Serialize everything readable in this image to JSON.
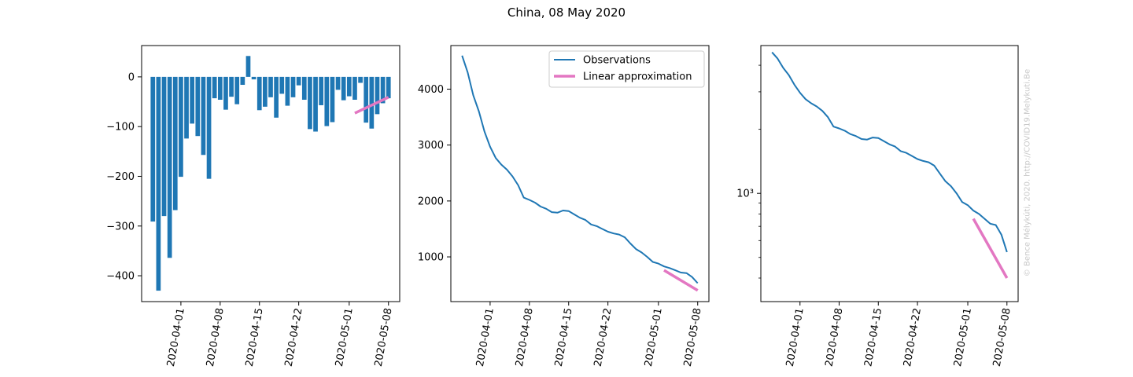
{
  "title": "China, 08 May 2020",
  "watermark": "© Bence Mélykúti, 2020. http://COVID19.Melykuti.Be",
  "colors": {
    "observations": "#1f77b4",
    "approximation": "#e377c2",
    "axis": "#000000"
  },
  "chart_data": [
    {
      "type": "bar",
      "x_tick_labels": [
        "2020-04-01",
        "2020-04-08",
        "2020-04-15",
        "2020-04-22",
        "2020-05-01",
        "2020-05-08"
      ],
      "x_tick_dates": [
        "2020-04-01",
        "2020-04-08",
        "2020-04-15",
        "2020-04-22",
        "2020-05-01",
        "2020-05-08"
      ],
      "y_ticks": [
        0,
        -100,
        -200,
        -300,
        -400
      ],
      "y_tick_labels": [
        "0",
        "−100",
        "−200",
        "−300",
        "−400"
      ],
      "ylim": [
        -452,
        63
      ],
      "xlim": [
        "2020-03-25",
        "2020-05-10"
      ],
      "bars": {
        "name": "Observations",
        "dates": [
          "2020-03-27",
          "2020-03-28",
          "2020-03-29",
          "2020-03-30",
          "2020-03-31",
          "2020-04-01",
          "2020-04-02",
          "2020-04-03",
          "2020-04-04",
          "2020-04-05",
          "2020-04-06",
          "2020-04-07",
          "2020-04-08",
          "2020-04-09",
          "2020-04-10",
          "2020-04-11",
          "2020-04-12",
          "2020-04-13",
          "2020-04-14",
          "2020-04-15",
          "2020-04-16",
          "2020-04-17",
          "2020-04-18",
          "2020-04-19",
          "2020-04-20",
          "2020-04-21",
          "2020-04-22",
          "2020-04-23",
          "2020-04-24",
          "2020-04-25",
          "2020-04-26",
          "2020-04-27",
          "2020-04-28",
          "2020-04-29",
          "2020-04-30",
          "2020-05-01",
          "2020-05-02",
          "2020-05-03",
          "2020-05-04",
          "2020-05-05",
          "2020-05-06",
          "2020-05-07",
          "2020-05-08"
        ],
        "values": [
          -291,
          -430,
          -280,
          -364,
          -268,
          -201,
          -124,
          -94,
          -119,
          -157,
          -205,
          -43,
          -46,
          -66,
          -40,
          -55,
          -16,
          42,
          -5,
          -67,
          -60,
          -41,
          -82,
          -34,
          -58,
          -41,
          -17,
          -46,
          -105,
          -110,
          -57,
          -99,
          -91,
          -26,
          -47,
          -39,
          -46,
          -12,
          -92,
          -104,
          -75,
          -53,
          -43
        ]
      },
      "approximation": {
        "name": "Linear approximation",
        "x": [
          "2020-05-02",
          "2020-05-08"
        ],
        "y": [
          -73,
          -41
        ]
      }
    },
    {
      "type": "line",
      "x_tick_labels": [
        "2020-04-01",
        "2020-04-08",
        "2020-04-15",
        "2020-04-22",
        "2020-05-01",
        "2020-05-08"
      ],
      "x_tick_dates": [
        "2020-04-01",
        "2020-04-08",
        "2020-04-15",
        "2020-04-22",
        "2020-05-01",
        "2020-05-08"
      ],
      "y_ticks": [
        1000,
        2000,
        3000,
        4000
      ],
      "y_tick_labels": [
        "1000",
        "2000",
        "3000",
        "4000"
      ],
      "ylim": [
        200,
        4780
      ],
      "xlim": [
        "2020-03-25",
        "2020-05-10"
      ],
      "legend": {
        "location": "top-right",
        "entries": [
          "Observations",
          "Linear approximation"
        ]
      },
      "series": [
        {
          "name": "Observations",
          "dates": [
            "2020-03-27",
            "2020-03-28",
            "2020-03-29",
            "2020-03-30",
            "2020-03-31",
            "2020-04-01",
            "2020-04-02",
            "2020-04-03",
            "2020-04-04",
            "2020-04-05",
            "2020-04-06",
            "2020-04-07",
            "2020-04-08",
            "2020-04-09",
            "2020-04-10",
            "2020-04-11",
            "2020-04-12",
            "2020-04-13",
            "2020-04-14",
            "2020-04-15",
            "2020-04-16",
            "2020-04-17",
            "2020-04-18",
            "2020-04-19",
            "2020-04-20",
            "2020-04-21",
            "2020-04-22",
            "2020-04-23",
            "2020-04-24",
            "2020-04-25",
            "2020-04-26",
            "2020-04-27",
            "2020-04-28",
            "2020-04-29",
            "2020-04-30",
            "2020-05-01",
            "2020-05-02",
            "2020-05-03",
            "2020-05-04",
            "2020-05-05",
            "2020-05-06",
            "2020-05-07",
            "2020-05-08"
          ],
          "values": [
            4600,
            4300,
            3890,
            3600,
            3240,
            2970,
            2770,
            2650,
            2560,
            2440,
            2280,
            2060,
            2020,
            1970,
            1900,
            1860,
            1800,
            1790,
            1830,
            1820,
            1760,
            1700,
            1660,
            1580,
            1550,
            1500,
            1450,
            1420,
            1400,
            1350,
            1240,
            1140,
            1080,
            1000,
            910,
            880,
            830,
            800,
            760,
            720,
            710,
            640,
            530
          ]
        },
        {
          "name": "Linear approximation",
          "x": [
            "2020-05-02",
            "2020-05-08"
          ],
          "y": [
            760,
            400
          ]
        }
      ]
    },
    {
      "type": "line",
      "yscale": "log",
      "x_tick_labels": [
        "2020-04-01",
        "2020-04-08",
        "2020-04-15",
        "2020-04-22",
        "2020-05-01",
        "2020-05-08"
      ],
      "x_tick_dates": [
        "2020-04-01",
        "2020-04-08",
        "2020-04-15",
        "2020-04-22",
        "2020-05-01",
        "2020-05-08"
      ],
      "y_ticks": [
        1000
      ],
      "y_tick_labels": [
        "10³"
      ],
      "ylim": [
        310,
        4950
      ],
      "xlim": [
        "2020-03-25",
        "2020-05-10"
      ],
      "series": [
        {
          "name": "Observations",
          "dates": [
            "2020-03-27",
            "2020-03-28",
            "2020-03-29",
            "2020-03-30",
            "2020-03-31",
            "2020-04-01",
            "2020-04-02",
            "2020-04-03",
            "2020-04-04",
            "2020-04-05",
            "2020-04-06",
            "2020-04-07",
            "2020-04-08",
            "2020-04-09",
            "2020-04-10",
            "2020-04-11",
            "2020-04-12",
            "2020-04-13",
            "2020-04-14",
            "2020-04-15",
            "2020-04-16",
            "2020-04-17",
            "2020-04-18",
            "2020-04-19",
            "2020-04-20",
            "2020-04-21",
            "2020-04-22",
            "2020-04-23",
            "2020-04-24",
            "2020-04-25",
            "2020-04-26",
            "2020-04-27",
            "2020-04-28",
            "2020-04-29",
            "2020-04-30",
            "2020-05-01",
            "2020-05-02",
            "2020-05-03",
            "2020-05-04",
            "2020-05-05",
            "2020-05-06",
            "2020-05-07",
            "2020-05-08"
          ],
          "values": [
            4600,
            4300,
            3890,
            3600,
            3240,
            2970,
            2770,
            2650,
            2560,
            2440,
            2280,
            2060,
            2020,
            1970,
            1900,
            1860,
            1800,
            1790,
            1830,
            1820,
            1760,
            1700,
            1660,
            1580,
            1550,
            1500,
            1450,
            1420,
            1400,
            1350,
            1240,
            1140,
            1080,
            1000,
            910,
            880,
            830,
            800,
            760,
            720,
            710,
            640,
            530
          ]
        },
        {
          "name": "Linear approximation",
          "x": [
            "2020-05-02",
            "2020-05-08"
          ],
          "y": [
            760,
            400
          ]
        }
      ]
    }
  ]
}
